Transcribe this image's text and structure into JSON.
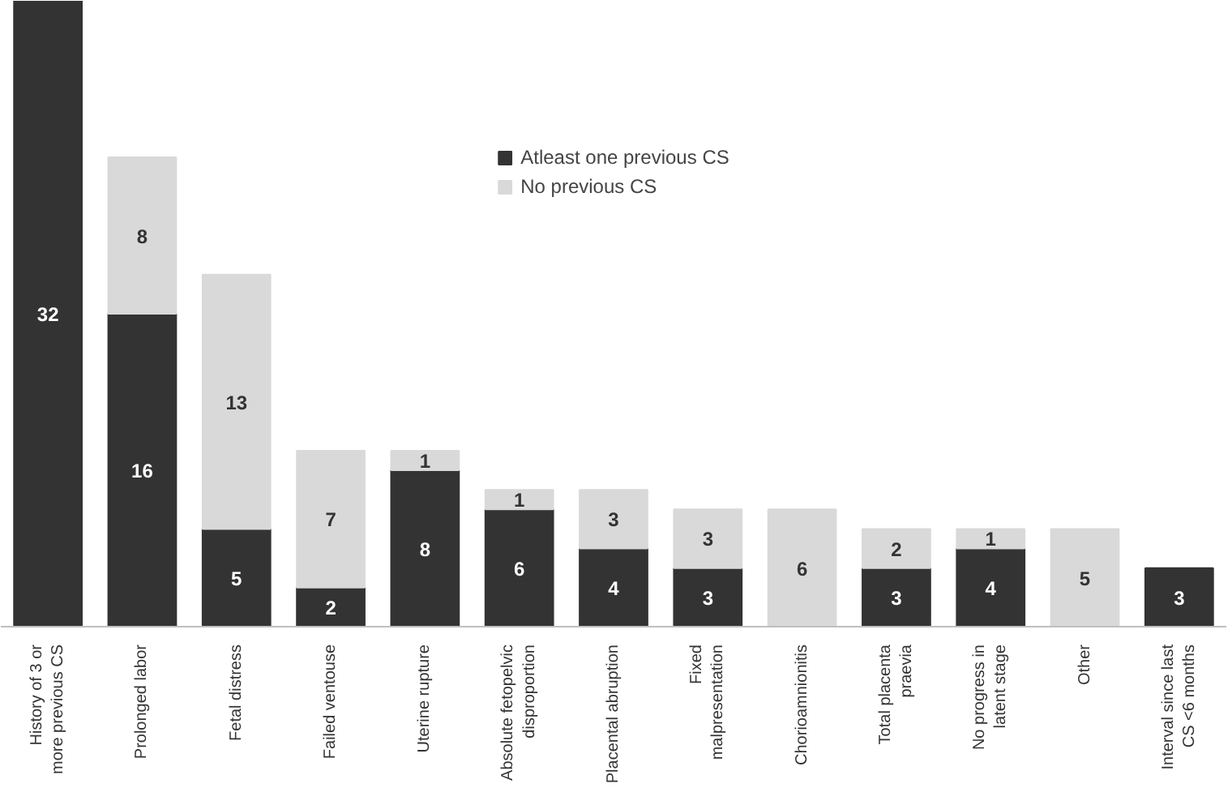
{
  "chart_data": {
    "type": "bar",
    "stacked": true,
    "data_labels": true,
    "legend": "top",
    "grid": false,
    "categories": [
      "History of 3 or more previous CS",
      "Prolonged labor",
      "Fetal distress",
      "Failed ventouse",
      "Uterine rupture",
      "Absolute fetopelvic disproportion",
      "Placental abruption",
      "Fixed malpresentation",
      "Chorioamnionitis",
      "Total placenta praevia",
      "No progress in latent stage",
      "Other",
      "Interval since last CS <6 months"
    ],
    "series": [
      {
        "name": "Atleast one previous CS",
        "color": "#333333",
        "values": [
          32,
          16,
          5,
          2,
          8,
          6,
          4,
          3,
          null,
          3,
          4,
          null,
          3
        ]
      },
      {
        "name": "No previous CS",
        "color": "#d9d9d9",
        "values": [
          null,
          8,
          13,
          7,
          1,
          1,
          3,
          3,
          6,
          2,
          1,
          5,
          null
        ]
      }
    ]
  }
}
